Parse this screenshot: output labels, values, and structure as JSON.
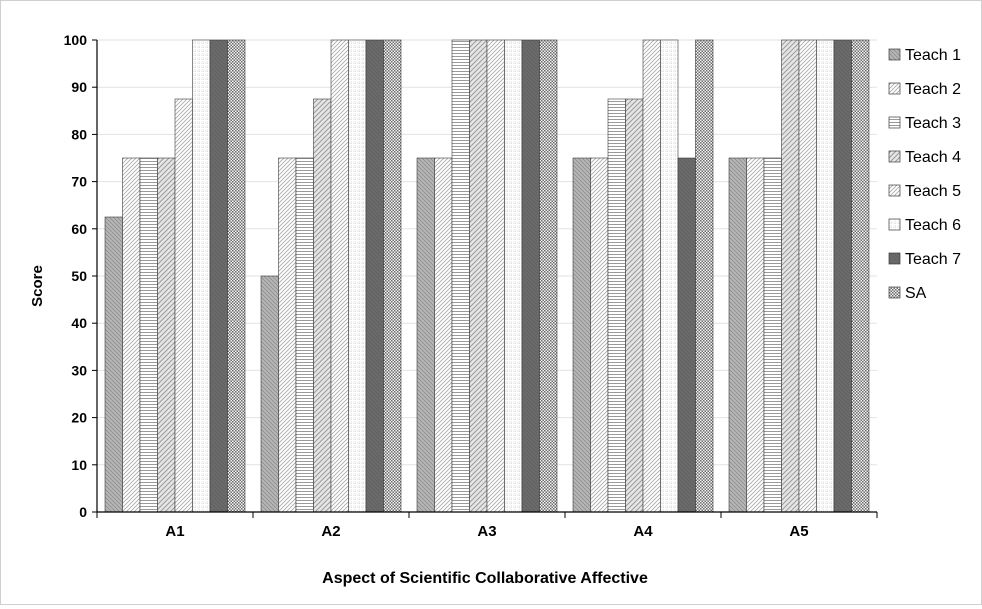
{
  "chart_data": {
    "type": "bar",
    "title": "",
    "xlabel": "Aspect of  Scientific Collaborative Affective",
    "ylabel": "Score",
    "ylim": [
      0,
      100
    ],
    "yticks": [
      "0",
      "10",
      "20",
      "30",
      "40",
      "50",
      "60",
      "70",
      "80",
      "90",
      "100"
    ],
    "categories": [
      "A1",
      "A2",
      "A3",
      "A4",
      "A5"
    ],
    "grid": true,
    "legend_position": "right",
    "series": [
      {
        "name": "Teach 1",
        "values": [
          62.5,
          50,
          75,
          75,
          75
        ],
        "color": "#a9a9a9",
        "pattern": "light-downward-diagonal"
      },
      {
        "name": "Teach 2",
        "values": [
          75,
          75,
          75,
          75,
          75
        ],
        "color": "#d9d9d9",
        "pattern": "light-upward-diagonal"
      },
      {
        "name": "Teach 3",
        "values": [
          75,
          75,
          100,
          87.5,
          75
        ],
        "color": "#e6e6e6",
        "pattern": "horizontal-lines"
      },
      {
        "name": "Teach 4",
        "values": [
          75,
          87.5,
          100,
          87.5,
          100
        ],
        "color": "#cccccc",
        "pattern": "wide-upward-diagonal"
      },
      {
        "name": "Teach 5",
        "values": [
          87.5,
          100,
          100,
          100,
          100
        ],
        "color": "#f2f2f2",
        "pattern": "light-upward-diagonal"
      },
      {
        "name": "Teach 6",
        "values": [
          100,
          100,
          100,
          100,
          100
        ],
        "color": "#e9e9e9",
        "pattern": "dotted-grid"
      },
      {
        "name": "Teach 7",
        "values": [
          100,
          100,
          100,
          75,
          100
        ],
        "color": "#6e6e6e",
        "pattern": "solid-dark"
      },
      {
        "name": "SA",
        "values": [
          100,
          100,
          100,
          100,
          100
        ],
        "color": "#bdbdbd",
        "pattern": "dense-dots"
      }
    ]
  }
}
